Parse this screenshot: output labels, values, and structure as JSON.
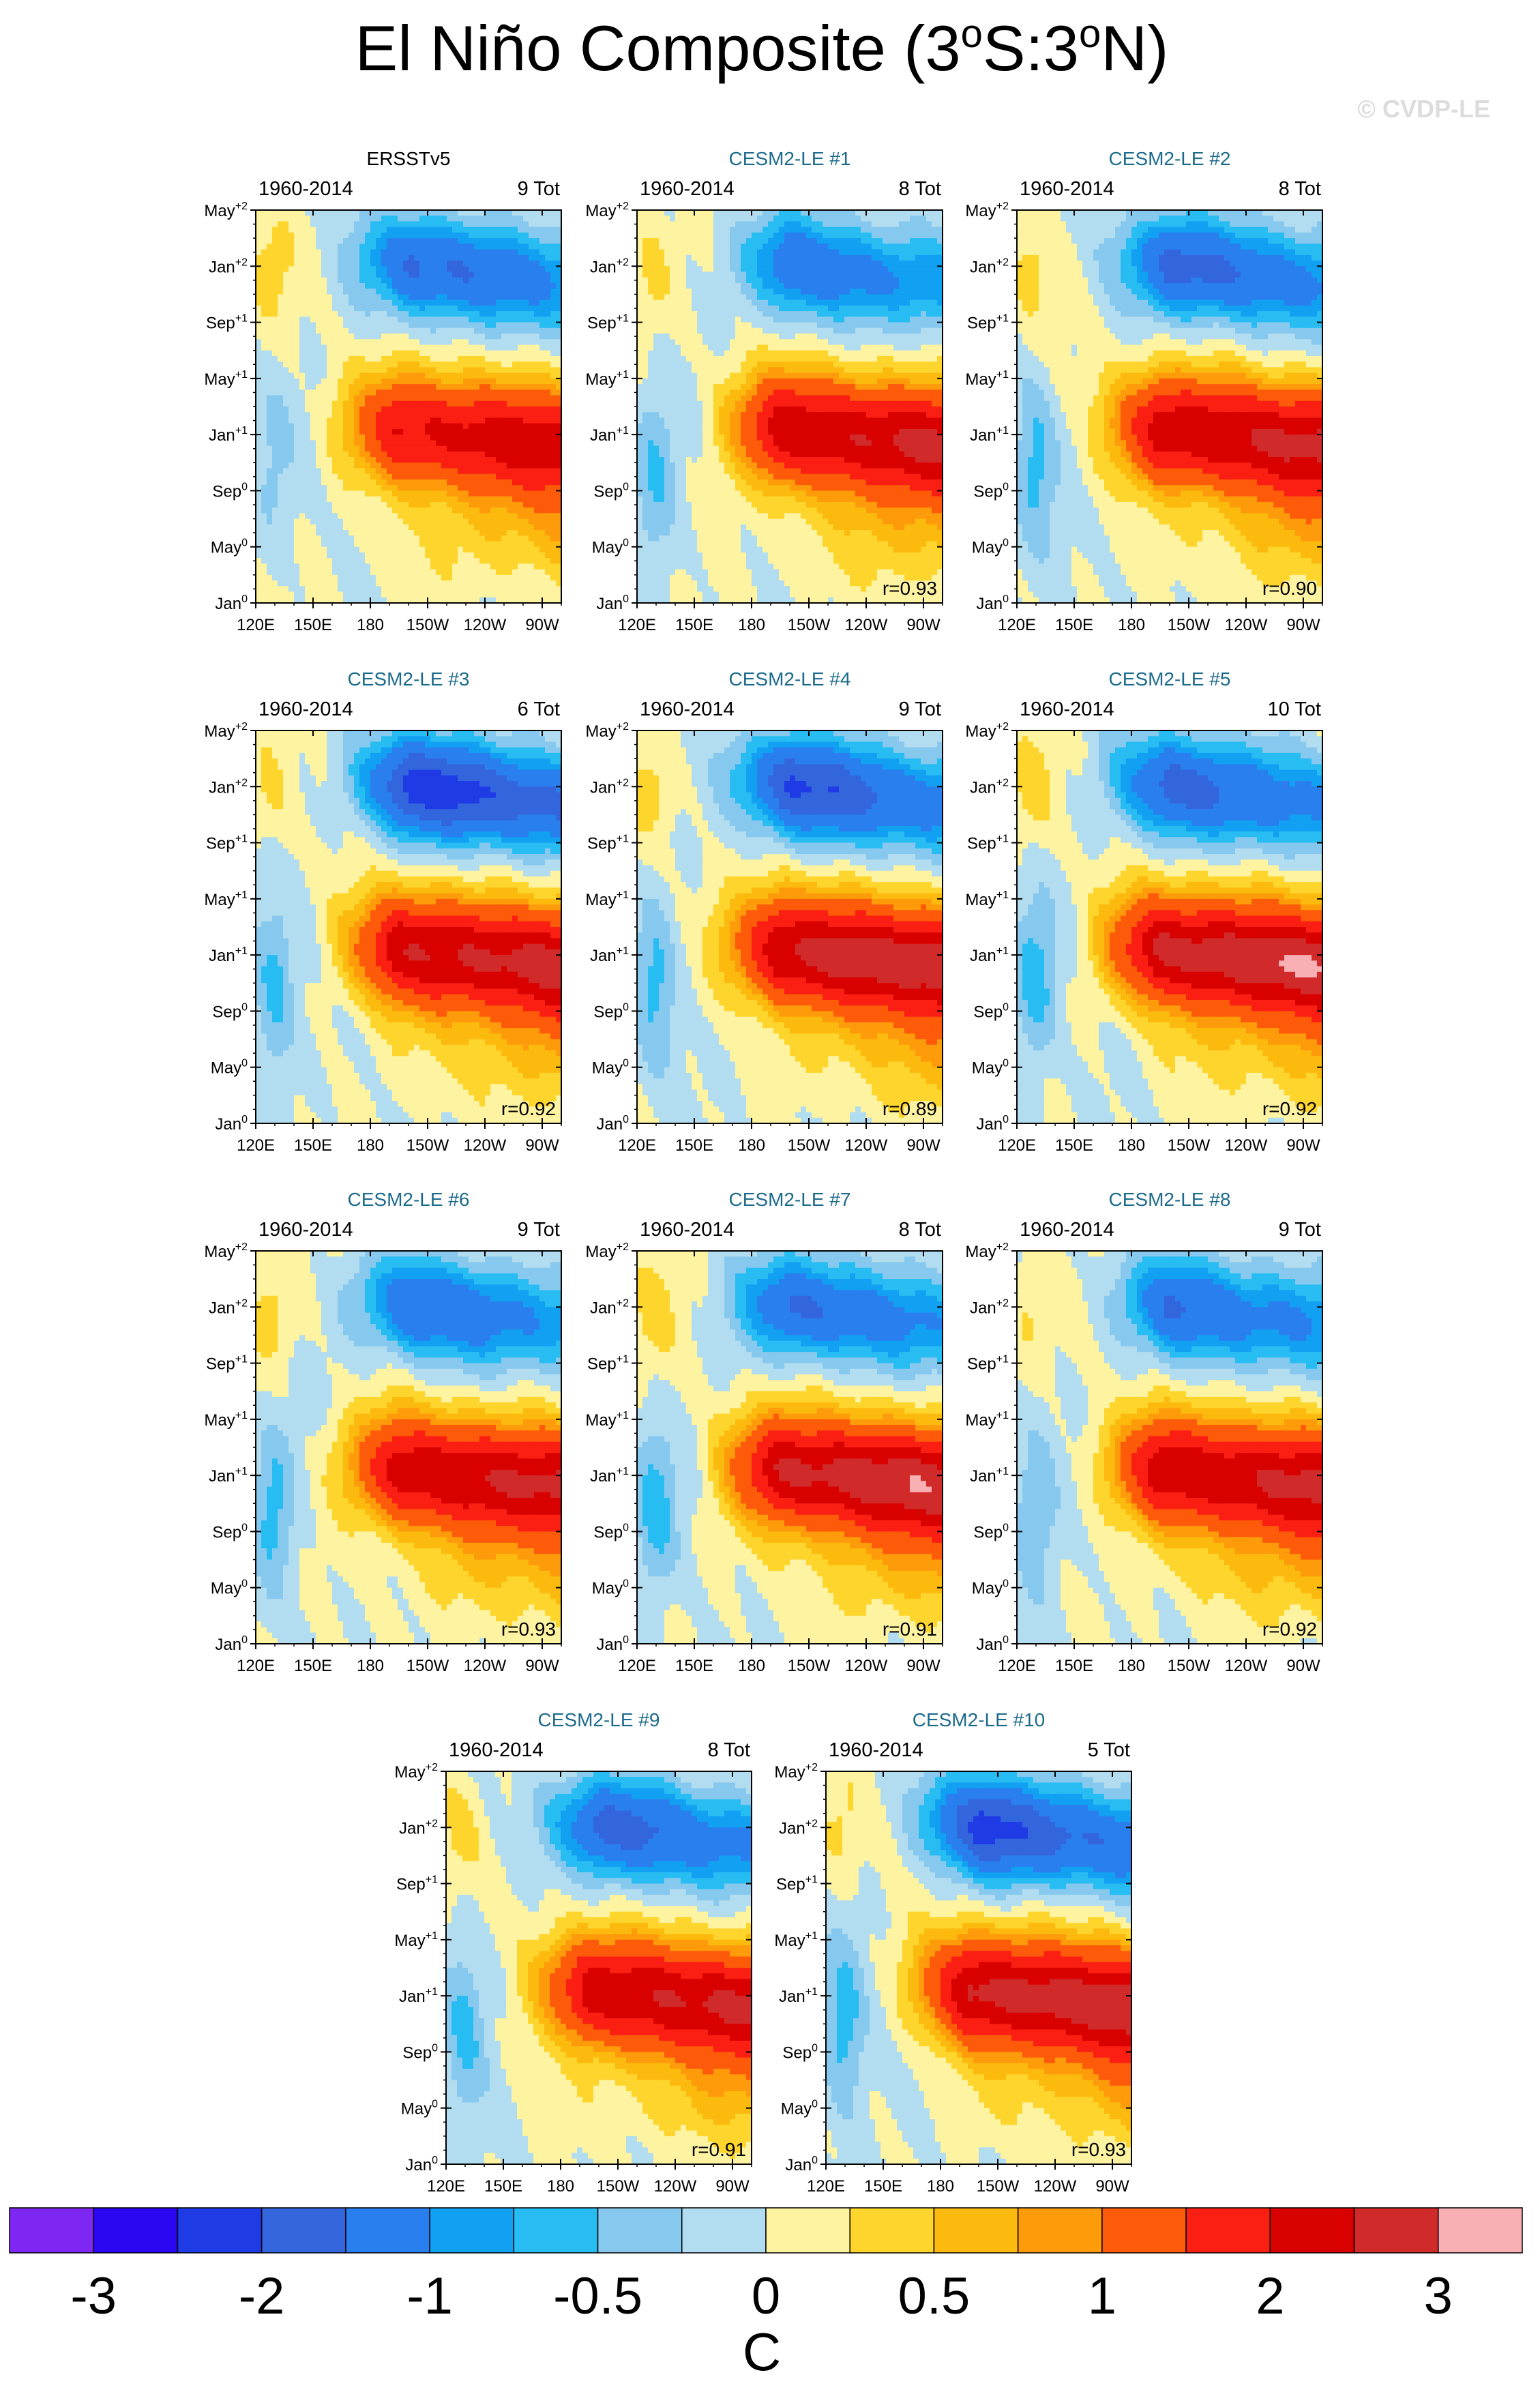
{
  "figure": {
    "title_main": "El Niño Composite (3",
    "title_sup1": "o",
    "title_mid": "S:3",
    "title_sup2": "o",
    "title_end": "N)",
    "watermark": "© CVDP-LE",
    "period": "1960-2014",
    "y_ticks": [
      {
        "base": "Jan",
        "sup": "0"
      },
      {
        "base": "May",
        "sup": "0"
      },
      {
        "base": "Sep",
        "sup": "0"
      },
      {
        "base": "Jan",
        "sup": "+1"
      },
      {
        "base": "May",
        "sup": "+1"
      },
      {
        "base": "Sep",
        "sup": "+1"
      },
      {
        "base": "Jan",
        "sup": "+2"
      },
      {
        "base": "May",
        "sup": "+2"
      }
    ],
    "x_ticks": [
      "120E",
      "150E",
      "180",
      "150W",
      "120W",
      "90W"
    ]
  },
  "chart_data": {
    "type": "heatmap",
    "description": "Hovmoller composites of El Nino SST anomaly (time vs longitude)",
    "x_range_deg_east": [
      120,
      280
    ],
    "y_range_months": [
      0,
      28
    ],
    "panels": [
      {
        "name": "ERSSTv5",
        "period": "1960-2014",
        "count": "9 Tot",
        "r": null,
        "peak": 2.3,
        "neg": -1.6,
        "cool": 0.3,
        "warm_peak_x": 0.58,
        "obs": true
      },
      {
        "name": "CESM2-LE #1",
        "period": "1960-2014",
        "count": "8 Tot",
        "r": "r=0.93",
        "peak": 2.6,
        "neg": -1.4,
        "cool": 0.55,
        "warm_peak_x": 0.55
      },
      {
        "name": "CESM2-LE #2",
        "period": "1960-2014",
        "count": "8 Tot",
        "r": "r=0.90",
        "peak": 2.6,
        "neg": -1.7,
        "cool": 0.6,
        "warm_peak_x": 0.55
      },
      {
        "name": "CESM2-LE #3",
        "period": "1960-2014",
        "count": "6 Tot",
        "r": "r=0.92",
        "peak": 2.7,
        "neg": -2.3,
        "cool": 0.65,
        "warm_peak_x": 0.6
      },
      {
        "name": "CESM2-LE #4",
        "period": "1960-2014",
        "count": "9 Tot",
        "r": "r=0.89",
        "peak": 2.9,
        "neg": -2.1,
        "cool": 0.6,
        "warm_peak_x": 0.5
      },
      {
        "name": "CESM2-LE #5",
        "period": "1960-2014",
        "count": "10 Tot",
        "r": "r=0.92",
        "peak": 3.0,
        "neg": -1.8,
        "cool": 0.65,
        "warm_peak_x": 0.5
      },
      {
        "name": "CESM2-LE #6",
        "period": "1960-2014",
        "count": "9 Tot",
        "r": "r=0.93",
        "peak": 2.6,
        "neg": -1.5,
        "cool": 0.6,
        "warm_peak_x": 0.55
      },
      {
        "name": "CESM2-LE #7",
        "period": "1960-2014",
        "count": "8 Tot",
        "r": "r=0.91",
        "peak": 2.9,
        "neg": -1.6,
        "cool": 0.6,
        "warm_peak_x": 0.5
      },
      {
        "name": "CESM2-LE #8",
        "period": "1960-2014",
        "count": "9 Tot",
        "r": "r=0.92",
        "peak": 2.6,
        "neg": -1.5,
        "cool": 0.55,
        "warm_peak_x": 0.55
      },
      {
        "name": "CESM2-LE #9",
        "period": "1960-2014",
        "count": "8 Tot",
        "r": "r=0.91",
        "peak": 2.6,
        "neg": -1.7,
        "cool": 0.6,
        "warm_peak_x": 0.55
      },
      {
        "name": "CESM2-LE #10",
        "period": "1960-2014",
        "count": "5 Tot",
        "r": "r=0.93",
        "peak": 2.9,
        "neg": -2.2,
        "cool": 0.7,
        "warm_peak_x": 0.5
      }
    ],
    "colorbar": {
      "levels": [
        -3,
        -2.5,
        -2,
        -1.5,
        -1,
        -0.75,
        -0.5,
        -0.25,
        0,
        0.25,
        0.5,
        0.75,
        1,
        1.5,
        2,
        2.5,
        3
      ],
      "tick_labels": [
        "-3",
        "-2",
        "-1",
        "-0.5",
        "0",
        "0.5",
        "1",
        "2",
        "3"
      ],
      "units": "C",
      "colors": [
        "#7f27f2",
        "#2a06f2",
        "#1f3be6",
        "#3366dd",
        "#2a7fee",
        "#11a0f2",
        "#28bdf2",
        "#87c9ee",
        "#b2dcef",
        "#fdf3a0",
        "#fed52c",
        "#fdba0e",
        "#fe9b0b",
        "#fd5a0a",
        "#fa1f12",
        "#d90000",
        "#d02a2a",
        "#f8b0b5"
      ]
    }
  }
}
